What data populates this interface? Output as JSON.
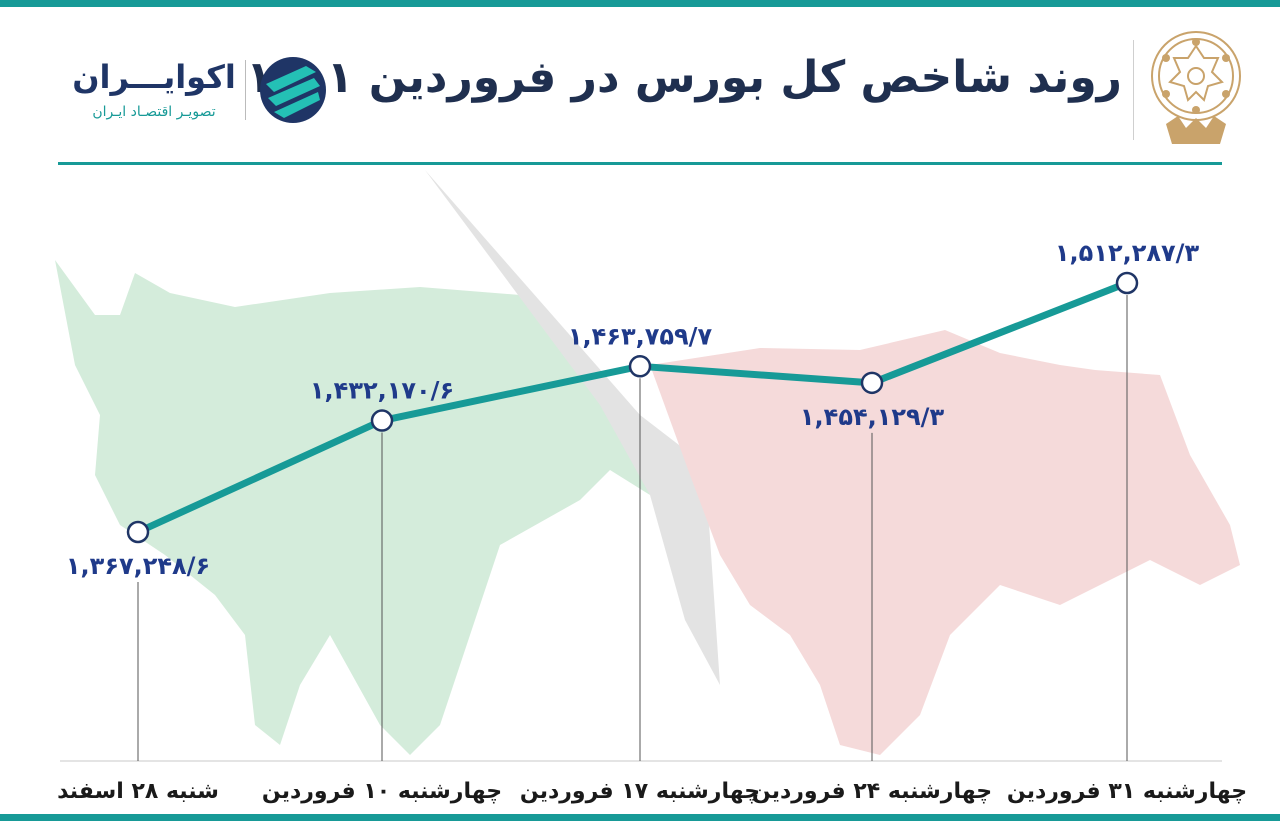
{
  "header": {
    "title": "روند شاخص کل بورس در فروردین ۱۴۰۱",
    "brand_name": "اکوایـــران",
    "brand_tagline": "تصویـر اقتصـاد ایـران"
  },
  "colors": {
    "accent": "#179a97",
    "navy": "#1f3566",
    "label": "#1f3a8a",
    "bull": "#cfe9d6",
    "bear": "#f4d3d3",
    "gold": "#c9a36b"
  },
  "icons": {
    "seal": "stock-exchange-seal-icon",
    "brand": "ecoiran-logo-icon",
    "background": "bull-bear-silhouette-icon"
  },
  "chart_data": {
    "type": "line",
    "categories": [
      "شنبه ۲۸ اسفند",
      "چهارشنبه ۱۰ فروردین",
      "چهارشنبه ۱۷ فروردین",
      "چهارشنبه ۲۴ فروردین",
      "چهارشنبه ۳۱ فروردین"
    ],
    "values": [
      1367248.6,
      1432170.6,
      1463759.7,
      1454129.3,
      1512287.3
    ],
    "value_labels": [
      "۱,۳۶۷,۲۴۸/۶",
      "۱,۴۳۲,۱۷۰/۶",
      "۱,۴۶۳,۷۵۹/۷",
      "۱,۴۵۴,۱۲۹/۳",
      "۱,۵۱۲,۲۸۷/۳"
    ],
    "title": "روند شاخص کل بورس در فروردین ۱۴۰۱",
    "xlabel": "",
    "ylabel": "",
    "ylim": [
      1300000,
      1550000
    ],
    "grid": false,
    "legend": "none"
  }
}
